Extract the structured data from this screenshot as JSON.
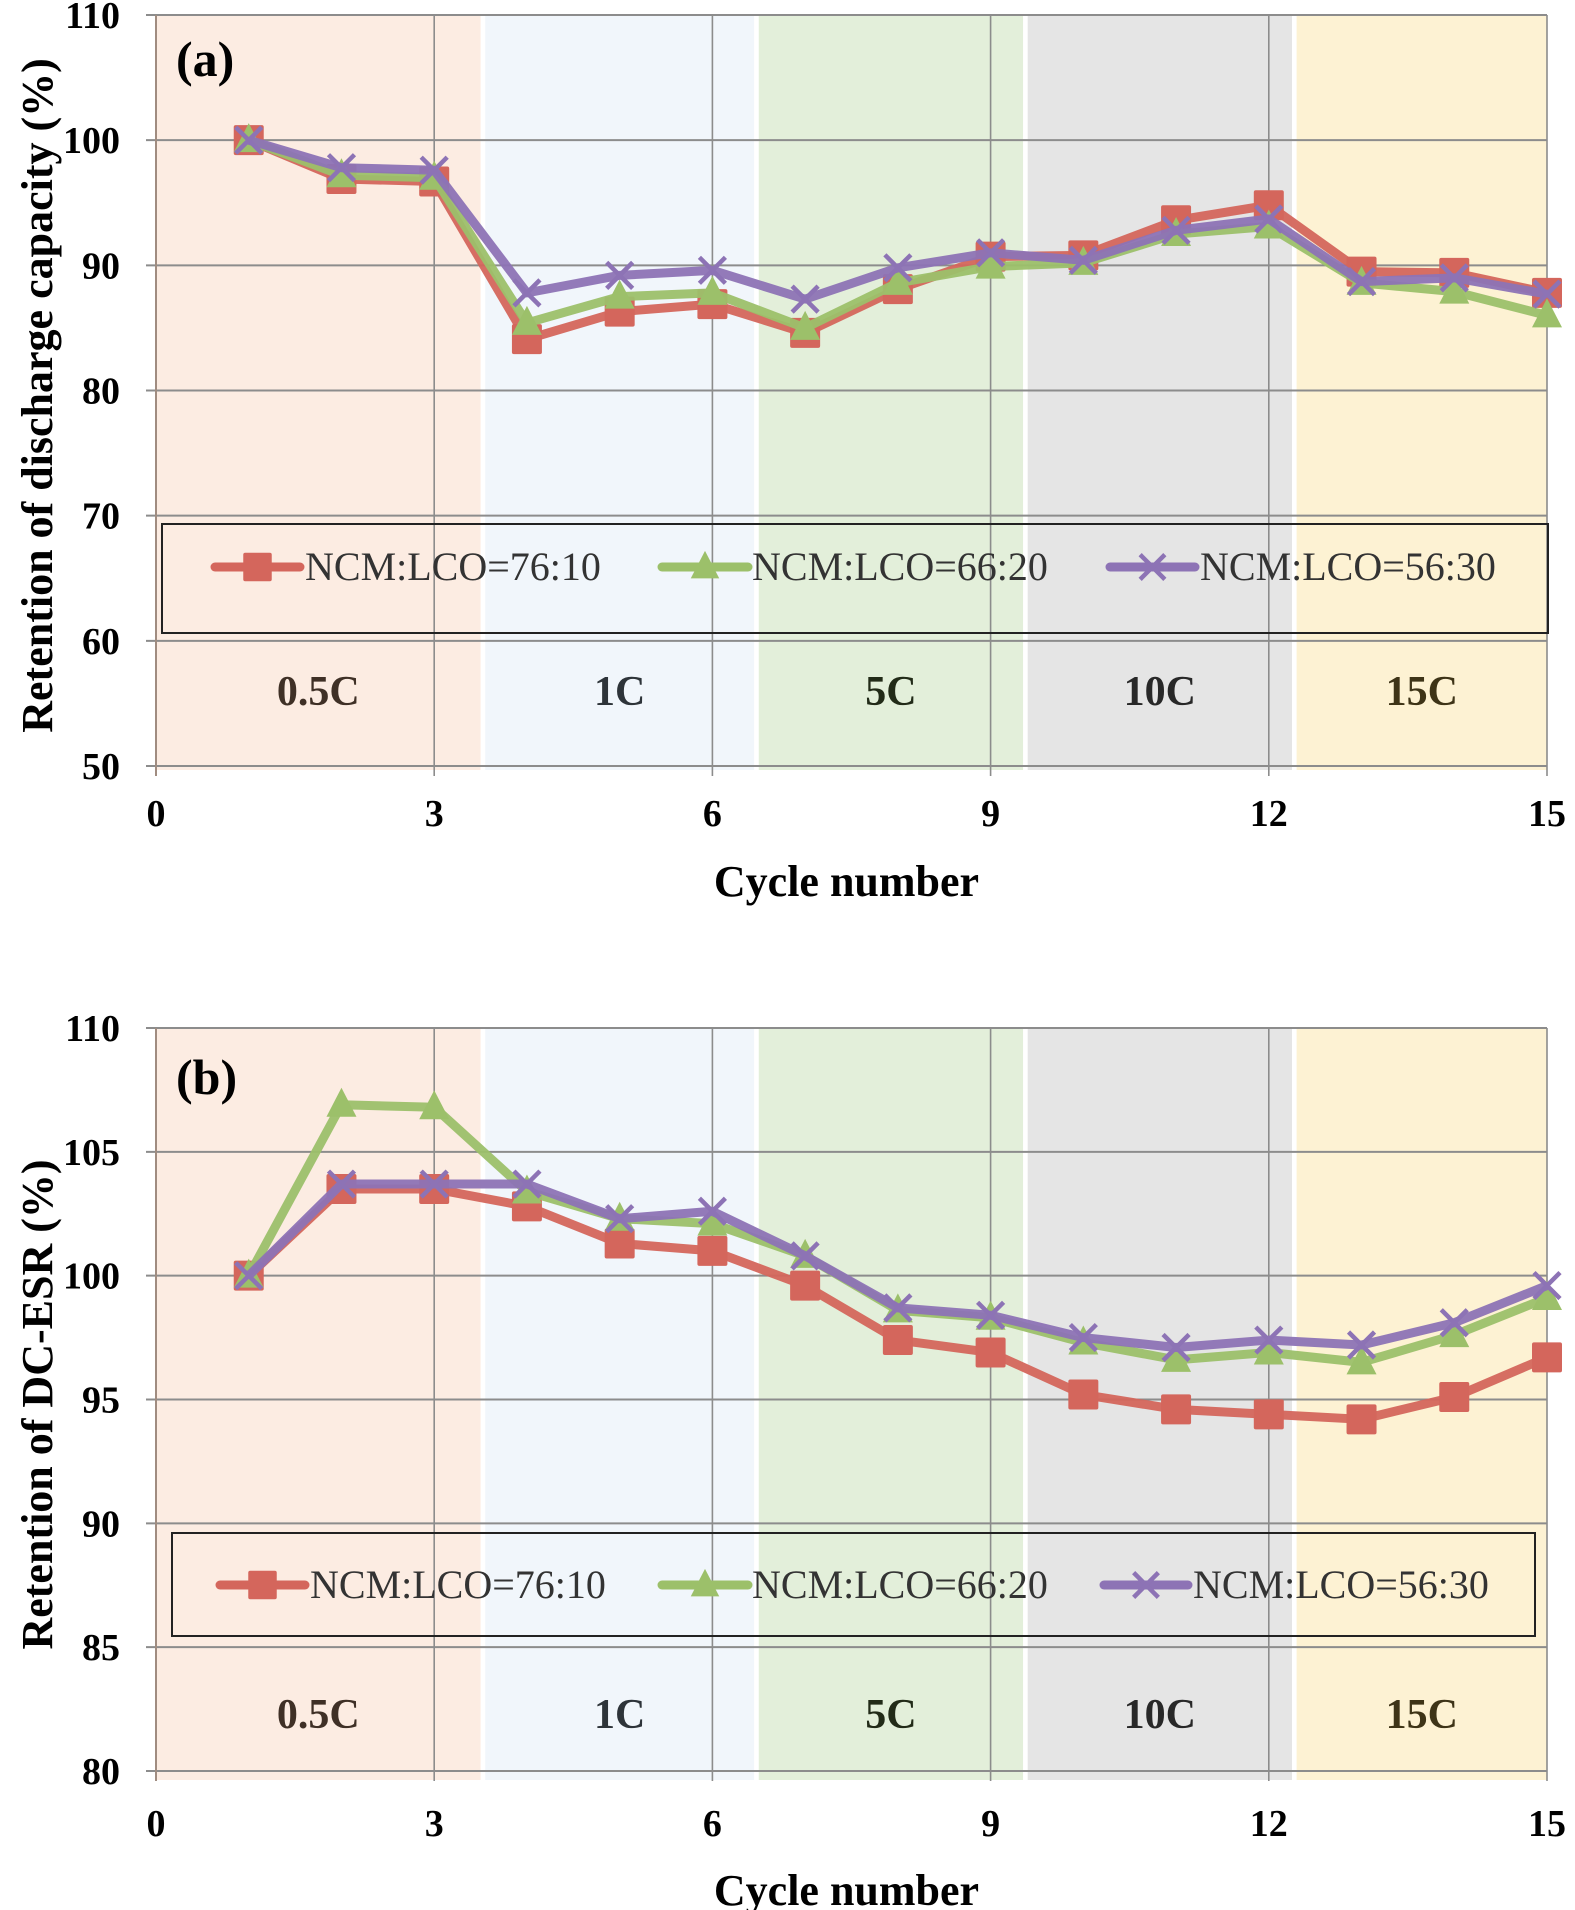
{
  "chart_data": [
    {
      "type": "line",
      "panel_label": "(a)",
      "title": "",
      "xlabel": "Cycle number",
      "ylabel": "Retention of discharge capacity (%)",
      "xlim": [
        0,
        15
      ],
      "ylim": [
        50,
        110
      ],
      "xticks": [
        0,
        3,
        6,
        9,
        12,
        15
      ],
      "yticks": [
        50,
        60,
        70,
        80,
        90,
        100,
        110
      ],
      "grid": true,
      "legend_placement": "lower-center",
      "bands": [
        {
          "label": "0.5C",
          "from": 0,
          "to": 3.5,
          "color": "#fcece2",
          "text_color": "#3f3026"
        },
        {
          "label": "1C",
          "from": 3.55,
          "to": 6.45,
          "color": "#f1f6fb",
          "text_color": "#2e3439"
        },
        {
          "label": "5C",
          "from": 6.5,
          "to": 9.35,
          "color": "#e3efda",
          "text_color": "#222b18"
        },
        {
          "label": "10C",
          "from": 9.4,
          "to": 12.25,
          "color": "#e5e5e5",
          "text_color": "#282828"
        },
        {
          "label": "15C",
          "from": 12.3,
          "to": 15,
          "color": "#fdf2d3",
          "text_color": "#3e3417"
        }
      ],
      "x": [
        1,
        2,
        3,
        4,
        5,
        6,
        7,
        8,
        9,
        10,
        11,
        12,
        13,
        14,
        15
      ],
      "series": [
        {
          "name": "NCM:LCO=76:10",
          "marker": "square",
          "color": "#d4665c",
          "values": [
            100.0,
            96.9,
            96.7,
            84.1,
            86.3,
            86.9,
            84.6,
            88.1,
            90.7,
            90.8,
            93.6,
            94.8,
            89.5,
            89.4,
            87.8
          ]
        },
        {
          "name": "NCM:LCO=66:20",
          "marker": "triangle",
          "color": "#9cc06a",
          "values": [
            100.0,
            97.2,
            97.0,
            85.4,
            87.5,
            87.8,
            85.0,
            88.6,
            89.9,
            90.2,
            92.5,
            93.1,
            88.6,
            87.9,
            86.0
          ]
        },
        {
          "name": "NCM:LCO=56:30",
          "marker": "x",
          "color": "#8d73b5",
          "values": [
            100.0,
            97.8,
            97.6,
            87.8,
            89.2,
            89.6,
            87.3,
            89.8,
            91.0,
            90.4,
            92.8,
            93.7,
            88.7,
            89.0,
            87.7
          ]
        }
      ]
    },
    {
      "type": "line",
      "panel_label": "(b)",
      "title": "",
      "xlabel": "Cycle number",
      "ylabel": "Retention of DC-ESR (%)",
      "xlim": [
        0,
        15
      ],
      "ylim": [
        80,
        110
      ],
      "xticks": [
        0,
        3,
        6,
        9,
        12,
        15
      ],
      "yticks": [
        80,
        85,
        90,
        95,
        100,
        105,
        110
      ],
      "grid": true,
      "legend_placement": "lower-center",
      "bands": [
        {
          "label": "0.5C",
          "from": 0,
          "to": 3.5,
          "color": "#fcece2",
          "text_color": "#3f3026"
        },
        {
          "label": "1C",
          "from": 3.55,
          "to": 6.45,
          "color": "#f1f6fb",
          "text_color": "#2e3439"
        },
        {
          "label": "5C",
          "from": 6.5,
          "to": 9.35,
          "color": "#e3efda",
          "text_color": "#222b18"
        },
        {
          "label": "10C",
          "from": 9.4,
          "to": 12.25,
          "color": "#e5e5e5",
          "text_color": "#282828"
        },
        {
          "label": "15C",
          "from": 12.3,
          "to": 15,
          "color": "#fdf2d3",
          "text_color": "#3e3417"
        }
      ],
      "x": [
        1,
        2,
        3,
        4,
        5,
        6,
        7,
        8,
        9,
        10,
        11,
        12,
        13,
        14,
        15
      ],
      "series": [
        {
          "name": "NCM:LCO=76:10",
          "marker": "square",
          "color": "#d4665c",
          "values": [
            100.0,
            103.5,
            103.5,
            102.8,
            101.3,
            101.0,
            99.6,
            97.4,
            96.9,
            95.2,
            94.6,
            94.4,
            94.2,
            95.1,
            96.7
          ]
        },
        {
          "name": "NCM:LCO=66:20",
          "marker": "triangle",
          "color": "#9cc06a",
          "values": [
            100.0,
            106.9,
            106.8,
            103.4,
            102.3,
            102.1,
            100.8,
            98.6,
            98.3,
            97.3,
            96.6,
            96.9,
            96.5,
            97.6,
            99.1
          ]
        },
        {
          "name": "NCM:LCO=56:30",
          "marker": "x",
          "color": "#8d73b5",
          "values": [
            100.0,
            103.7,
            103.7,
            103.7,
            102.3,
            102.6,
            100.8,
            98.7,
            98.4,
            97.5,
            97.1,
            97.4,
            97.2,
            98.1,
            99.6
          ]
        }
      ]
    }
  ]
}
